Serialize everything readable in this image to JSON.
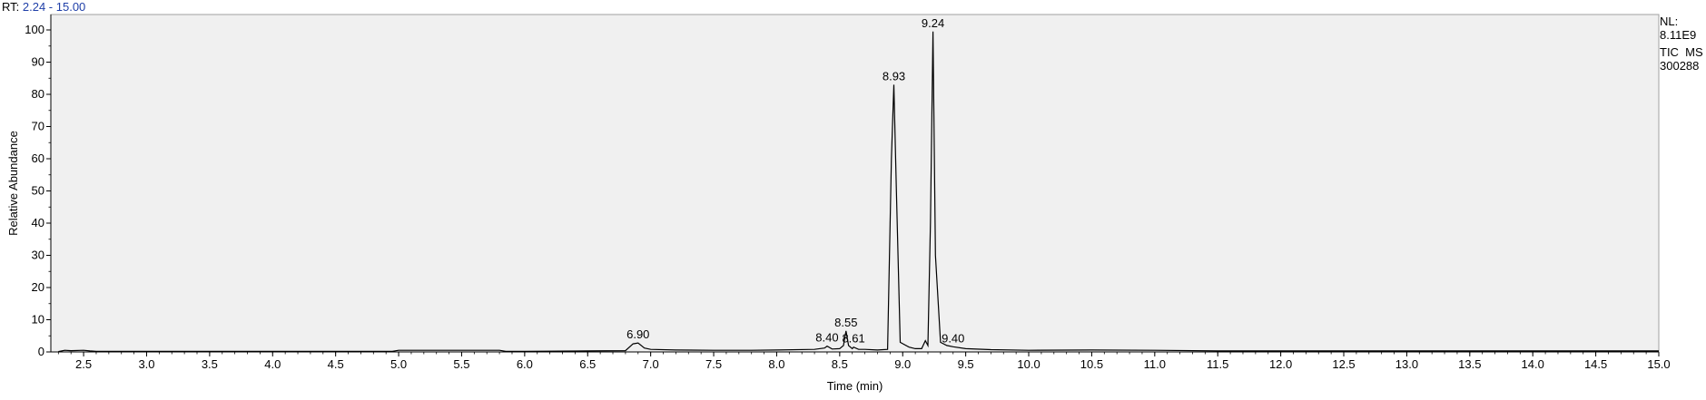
{
  "header": {
    "rt_prefix": "RT:",
    "rt_range": "2.24 - 15.00"
  },
  "info": {
    "nl_label": "NL:",
    "nl_value": "8.11E9",
    "scan_filter": "TIC  MS",
    "file_name": "300288"
  },
  "colors": {
    "plot_background": "#f0f0f0",
    "trace": "#000000",
    "rt_value": "#1f3fa8"
  },
  "chart_data": {
    "type": "line",
    "title": "",
    "xlabel": "Time (min)",
    "ylabel": "Relative Abundance",
    "xlim": [
      2.24,
      15.0
    ],
    "ylim": [
      0,
      105
    ],
    "x_ticks": [
      2.5,
      3.0,
      3.5,
      4.0,
      4.5,
      5.0,
      5.5,
      6.0,
      6.5,
      7.0,
      7.5,
      8.0,
      8.5,
      9.0,
      9.5,
      10.0,
      10.5,
      11.0,
      11.5,
      12.0,
      12.5,
      13.0,
      13.5,
      14.0,
      14.5,
      15.0
    ],
    "x_tick_labels": [
      "2.5",
      "3.0",
      "3.5",
      "4.0",
      "4.5",
      "5.0",
      "5.5",
      "6.0",
      "6.5",
      "7.0",
      "7.5",
      "8.0",
      "8.5",
      "9.0",
      "9.5",
      "10.0",
      "10.5",
      "11.0",
      "11.5",
      "12.0",
      "12.5",
      "13.0",
      "13.5",
      "14.0",
      "14.5",
      "15.0"
    ],
    "y_ticks": [
      0,
      10,
      20,
      30,
      40,
      50,
      60,
      70,
      80,
      90,
      100
    ],
    "y_tick_labels": [
      "0",
      "10",
      "20",
      "30",
      "40",
      "50",
      "60",
      "70",
      "80",
      "90",
      "100"
    ],
    "grid": false,
    "series": [
      {
        "x": [
          2.3,
          2.35,
          2.4,
          2.5,
          2.55,
          2.6,
          2.8,
          3.0,
          3.5,
          4.0,
          4.5,
          4.95,
          5.0,
          5.3,
          5.6,
          5.8,
          5.85,
          6.0,
          6.5,
          6.8,
          6.86,
          6.9,
          6.95,
          7.0,
          7.2,
          7.5,
          7.8,
          8.0,
          8.3,
          8.38,
          8.4,
          8.44,
          8.5,
          8.53,
          8.55,
          8.57,
          8.6,
          8.61,
          8.65,
          8.7,
          8.8,
          8.88,
          8.91,
          8.93,
          8.95,
          8.98,
          9.05,
          9.1,
          9.15,
          9.18,
          9.2,
          9.22,
          9.24,
          9.26,
          9.3,
          9.35,
          9.4,
          9.5,
          9.7,
          10.0,
          10.5,
          11.0,
          11.5,
          12.0,
          13.0,
          14.0,
          15.0
        ],
        "y": [
          0.1,
          0.5,
          0.4,
          0.5,
          0.3,
          0.2,
          0.2,
          0.2,
          0.2,
          0.2,
          0.2,
          0.2,
          0.5,
          0.5,
          0.5,
          0.5,
          0.2,
          0.2,
          0.3,
          0.4,
          2.5,
          2.8,
          1.2,
          0.8,
          0.6,
          0.5,
          0.5,
          0.6,
          0.8,
          1.2,
          1.8,
          0.9,
          1.0,
          2.0,
          6.5,
          2.0,
          1.0,
          1.5,
          0.8,
          0.8,
          0.6,
          0.8,
          60.0,
          83.0,
          50.0,
          3.0,
          1.5,
          1.0,
          1.0,
          3.5,
          2.0,
          40.0,
          99.5,
          30.0,
          3.0,
          2.0,
          1.6,
          1.0,
          0.7,
          0.5,
          0.6,
          0.5,
          0.3,
          0.3,
          0.3,
          0.3,
          0.3
        ]
      }
    ],
    "annotations": [
      {
        "x": 6.9,
        "y": 2.8,
        "label": "6.90"
      },
      {
        "x": 8.4,
        "y": 1.8,
        "label": "8.40"
      },
      {
        "x": 8.55,
        "y": 6.5,
        "label": "8.55"
      },
      {
        "x": 8.61,
        "y": 1.5,
        "label": "8.61"
      },
      {
        "x": 8.93,
        "y": 83.0,
        "label": "8.93"
      },
      {
        "x": 9.24,
        "y": 99.5,
        "label": "9.24"
      },
      {
        "x": 9.4,
        "y": 1.6,
        "label": "9.40"
      }
    ]
  }
}
